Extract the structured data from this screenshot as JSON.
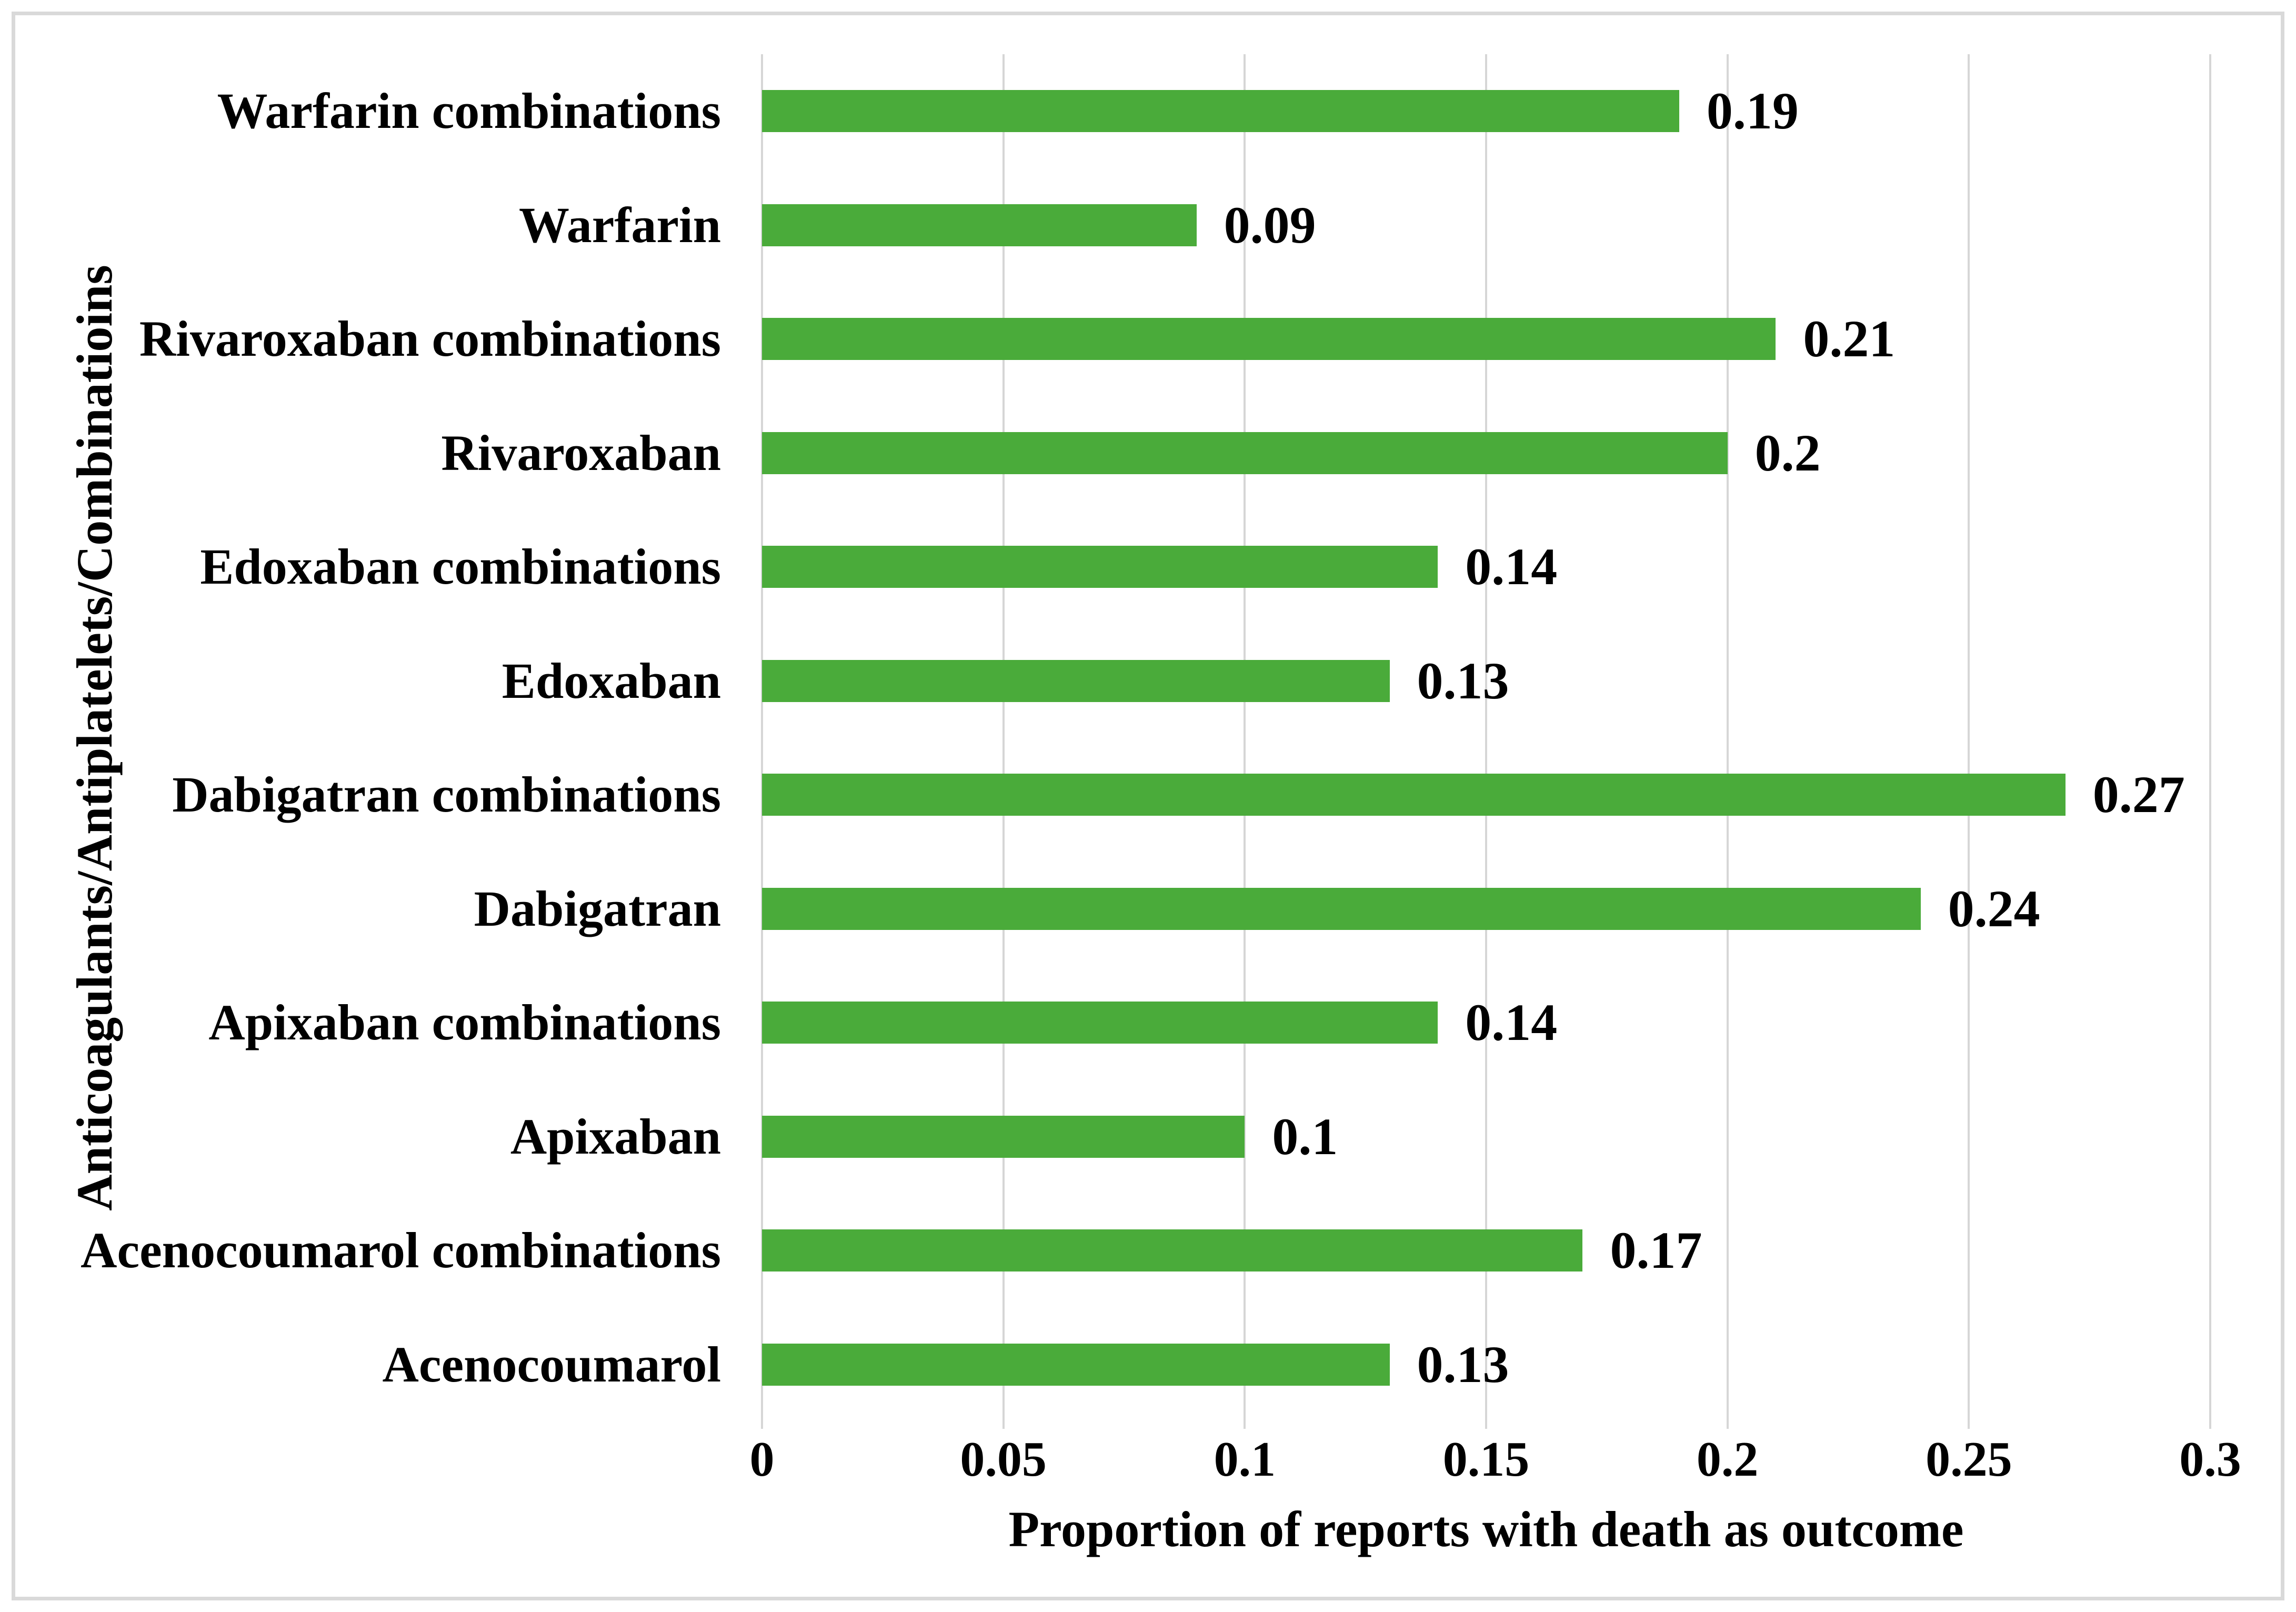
{
  "chart_data": {
    "type": "bar",
    "orientation": "horizontal",
    "title": "",
    "xlabel": "Proportion of reports with death as outcome",
    "ylabel": "Anticoagulants/Antiplatelets/Combinatioins",
    "categories": [
      "Warfarin combinations",
      "Warfarin",
      "Rivaroxaban combinations",
      "Rivaroxaban",
      "Edoxaban combinations",
      "Edoxaban",
      "Dabigatran combinations",
      "Dabigatran",
      "Apixaban combinations",
      "Apixaban",
      "Acenocoumarol combinations",
      "Acenocoumarol"
    ],
    "values": [
      0.19,
      0.09,
      0.21,
      0.2,
      0.14,
      0.13,
      0.27,
      0.24,
      0.14,
      0.1,
      0.17,
      0.13
    ],
    "value_labels": [
      "0.19",
      "0.09",
      "0.21",
      "0.2",
      "0.14",
      "0.13",
      "0.27",
      "0.24",
      "0.14",
      "0.1",
      "0.17",
      "0.13"
    ],
    "xlim": [
      0,
      0.3
    ],
    "x_tick_labels": [
      "0",
      "0.05",
      "0.1",
      "0.15",
      "0.2",
      "0.25",
      "0.3"
    ],
    "x_tick_values": [
      0,
      0.05,
      0.1,
      0.15,
      0.2,
      0.25,
      0.3
    ],
    "grid": "vertical-only",
    "legend": "none",
    "bar_color": "#4aab3a",
    "gridline_color": "#d6d6d6",
    "frame_border_color": "#d9d9d9",
    "text_color": "#000000"
  }
}
